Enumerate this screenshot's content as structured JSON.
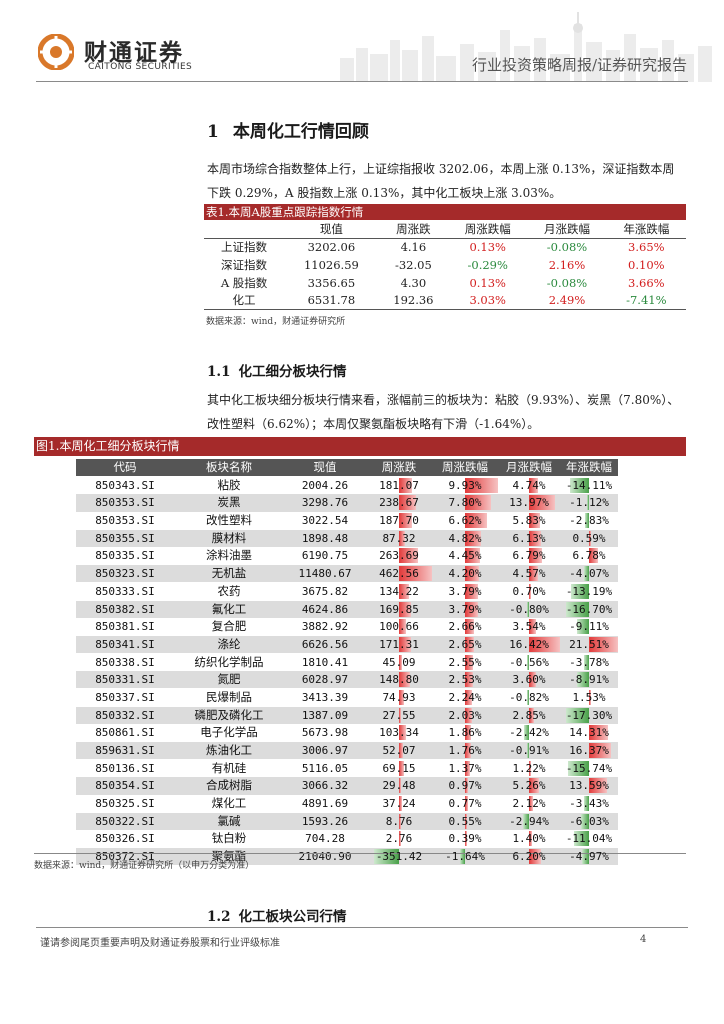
{
  "header": {
    "logo_cn": "财通证券",
    "logo_en": "CAITONG SECURITIES",
    "report_type": "行业投资策略周报/证券研究报告"
  },
  "section1": {
    "number": "1",
    "title": "本周化工行情回顾",
    "paragraph": "本周市场综合指数整体上行，上证综指报收 3202.06，本周上涨 0.13%，深证指数本周下跌 0.29%，A 股指数上涨 0.13%，其中化工板块上涨 3.03%。"
  },
  "table1": {
    "caption": "表1.本周A股重点跟踪指数行情",
    "columns": [
      "",
      "现值",
      "周涨跌",
      "周涨跌幅",
      "月涨跌幅",
      "年涨跌幅"
    ],
    "rows": [
      {
        "name": "上证指数",
        "value": "3202.06",
        "chg": "4.16",
        "wk": "0.13%",
        "mo": "-0.08%",
        "yr": "3.65%"
      },
      {
        "name": "深证指数",
        "value": "11026.59",
        "chg": "-32.05",
        "wk": "-0.29%",
        "mo": "2.16%",
        "yr": "0.10%"
      },
      {
        "name": "A 股指数",
        "value": "3356.65",
        "chg": "4.30",
        "wk": "0.13%",
        "mo": "-0.08%",
        "yr": "3.66%"
      },
      {
        "name": "化工",
        "value": "6531.78",
        "chg": "192.36",
        "wk": "3.03%",
        "mo": "2.49%",
        "yr": "-7.41%"
      }
    ],
    "source": "数据来源：wind，财通证券研究所"
  },
  "section1_1": {
    "number": "1.1",
    "title": "化工细分板块行情",
    "paragraph": "其中化工板块细分板块行情来看，涨幅前三的板块为：粘胶（9.93%）、炭黑（7.80%）、改性塑料（6.62%）；本周仅聚氨酯板块略有下滑（-1.64%）。"
  },
  "figure1": {
    "caption": "图1.本周化工细分板块行情",
    "columns": [
      "代码",
      "板块名称",
      "现值",
      "周涨跌",
      "周涨跌幅",
      "月涨跌幅",
      "年涨跌幅"
    ],
    "rows": [
      {
        "code": "850343.SI",
        "name": "粘胶",
        "value": "2004.26",
        "chg": "181.07",
        "chg_num": 181.07,
        "wk": "9.93%",
        "wk_num": 9.93,
        "mo": "4.74%",
        "mo_num": 4.74,
        "yr": "-14.11%",
        "yr_num": -14.11
      },
      {
        "code": "850353.SI",
        "name": "炭黑",
        "value": "3298.76",
        "chg": "238.67",
        "chg_num": 238.67,
        "wk": "7.80%",
        "wk_num": 7.8,
        "mo": "13.97%",
        "mo_num": 13.97,
        "yr": "-1.12%",
        "yr_num": -1.12
      },
      {
        "code": "850353.SI",
        "name": "改性塑料",
        "value": "3022.54",
        "chg": "187.70",
        "chg_num": 187.7,
        "wk": "6.62%",
        "wk_num": 6.62,
        "mo": "5.83%",
        "mo_num": 5.83,
        "yr": "-2.83%",
        "yr_num": -2.83
      },
      {
        "code": "850355.SI",
        "name": "膜材料",
        "value": "1898.48",
        "chg": "87.32",
        "chg_num": 87.32,
        "wk": "4.82%",
        "wk_num": 4.82,
        "mo": "6.13%",
        "mo_num": 6.13,
        "yr": "0.59%",
        "yr_num": 0.59
      },
      {
        "code": "850335.SI",
        "name": "涂料油墨",
        "value": "6190.75",
        "chg": "263.69",
        "chg_num": 263.69,
        "wk": "4.45%",
        "wk_num": 4.45,
        "mo": "6.79%",
        "mo_num": 6.79,
        "yr": "6.78%",
        "yr_num": 6.78
      },
      {
        "code": "850323.SI",
        "name": "无机盐",
        "value": "11480.67",
        "chg": "462.56",
        "chg_num": 462.56,
        "wk": "4.20%",
        "wk_num": 4.2,
        "mo": "4.57%",
        "mo_num": 4.57,
        "yr": "-4.07%",
        "yr_num": -4.07
      },
      {
        "code": "850333.SI",
        "name": "农药",
        "value": "3675.82",
        "chg": "134.22",
        "chg_num": 134.22,
        "wk": "3.79%",
        "wk_num": 3.79,
        "mo": "0.70%",
        "mo_num": 0.7,
        "yr": "-13.19%",
        "yr_num": -13.19
      },
      {
        "code": "850382.SI",
        "name": "氟化工",
        "value": "4624.86",
        "chg": "169.85",
        "chg_num": 169.85,
        "wk": "3.79%",
        "wk_num": 3.79,
        "mo": "-0.80%",
        "mo_num": -0.8,
        "yr": "-16.70%",
        "yr_num": -16.7
      },
      {
        "code": "850381.SI",
        "name": "复合肥",
        "value": "3882.92",
        "chg": "100.66",
        "chg_num": 100.66,
        "wk": "2.66%",
        "wk_num": 2.66,
        "mo": "3.54%",
        "mo_num": 3.54,
        "yr": "-9.11%",
        "yr_num": -9.11
      },
      {
        "code": "850341.SI",
        "name": "涤纶",
        "value": "6626.56",
        "chg": "171.31",
        "chg_num": 171.31,
        "wk": "2.65%",
        "wk_num": 2.65,
        "mo": "16.42%",
        "mo_num": 16.42,
        "yr": "21.51%",
        "yr_num": 21.51
      },
      {
        "code": "850338.SI",
        "name": "纺织化学制品",
        "value": "1810.41",
        "chg": "45.09",
        "chg_num": 45.09,
        "wk": "2.55%",
        "wk_num": 2.55,
        "mo": "-0.56%",
        "mo_num": -0.56,
        "yr": "-3.78%",
        "yr_num": -3.78
      },
      {
        "code": "850331.SI",
        "name": "氮肥",
        "value": "6028.97",
        "chg": "148.80",
        "chg_num": 148.8,
        "wk": "2.53%",
        "wk_num": 2.53,
        "mo": "3.60%",
        "mo_num": 3.6,
        "yr": "-8.91%",
        "yr_num": -8.91
      },
      {
        "code": "850337.SI",
        "name": "民爆制品",
        "value": "3413.39",
        "chg": "74.93",
        "chg_num": 74.93,
        "wk": "2.24%",
        "wk_num": 2.24,
        "mo": "-0.82%",
        "mo_num": -0.82,
        "yr": "1.53%",
        "yr_num": 1.53
      },
      {
        "code": "850332.SI",
        "name": "磷肥及磷化工",
        "value": "1387.09",
        "chg": "27.55",
        "chg_num": 27.55,
        "wk": "2.03%",
        "wk_num": 2.03,
        "mo": "2.85%",
        "mo_num": 2.85,
        "yr": "-17.30%",
        "yr_num": -17.3
      },
      {
        "code": "850861.SI",
        "name": "电子化学品",
        "value": "5673.98",
        "chg": "103.34",
        "chg_num": 103.34,
        "wk": "1.86%",
        "wk_num": 1.86,
        "mo": "-2.42%",
        "mo_num": -2.42,
        "yr": "14.31%",
        "yr_num": 14.31
      },
      {
        "code": "859631.SI",
        "name": "炼油化工",
        "value": "3006.97",
        "chg": "52.07",
        "chg_num": 52.07,
        "wk": "1.76%",
        "wk_num": 1.76,
        "mo": "-0.91%",
        "mo_num": -0.91,
        "yr": "16.37%",
        "yr_num": 16.37
      },
      {
        "code": "850136.SI",
        "name": "有机硅",
        "value": "5116.05",
        "chg": "69.15",
        "chg_num": 69.15,
        "wk": "1.37%",
        "wk_num": 1.37,
        "mo": "1.22%",
        "mo_num": 1.22,
        "yr": "-15.74%",
        "yr_num": -15.74
      },
      {
        "code": "850354.SI",
        "name": "合成树脂",
        "value": "3066.32",
        "chg": "29.48",
        "chg_num": 29.48,
        "wk": "0.97%",
        "wk_num": 0.97,
        "mo": "5.26%",
        "mo_num": 5.26,
        "yr": "13.59%",
        "yr_num": 13.59
      },
      {
        "code": "850325.SI",
        "name": "煤化工",
        "value": "4891.69",
        "chg": "37.24",
        "chg_num": 37.24,
        "wk": "0.77%",
        "wk_num": 0.77,
        "mo": "2.12%",
        "mo_num": 2.12,
        "yr": "-3.43%",
        "yr_num": -3.43
      },
      {
        "code": "850322.SI",
        "name": "氯碱",
        "value": "1593.26",
        "chg": "8.76",
        "chg_num": 8.76,
        "wk": "0.55%",
        "wk_num": 0.55,
        "mo": "-2.94%",
        "mo_num": -2.94,
        "yr": "-6.03%",
        "yr_num": -6.03
      },
      {
        "code": "850326.SI",
        "name": "钛白粉",
        "value": "704.28",
        "chg": "2.76",
        "chg_num": 2.76,
        "wk": "0.39%",
        "wk_num": 0.39,
        "mo": "1.40%",
        "mo_num": 1.4,
        "yr": "-11.04%",
        "yr_num": -11.04
      },
      {
        "code": "850372.SI",
        "name": "聚氨酯",
        "value": "21040.90",
        "chg": "-351.42",
        "chg_num": -351.42,
        "wk": "-1.64%",
        "wk_num": -1.64,
        "mo": "6.20%",
        "mo_num": 6.2,
        "yr": "-4.97%",
        "yr_num": -4.97
      }
    ],
    "source": "数据来源：wind，财通证券研究所（以申万分类为准）"
  },
  "section1_2": {
    "number": "1.2",
    "title": "化工板块公司行情"
  },
  "footer": {
    "disclaimer": "谨请参阅尾页重要声明及财通证券股票和行业评级标准",
    "page": "4"
  },
  "colors": {
    "accent": "#a52a2a",
    "positive": "#d21e1e",
    "negative": "#2b8a3e"
  }
}
